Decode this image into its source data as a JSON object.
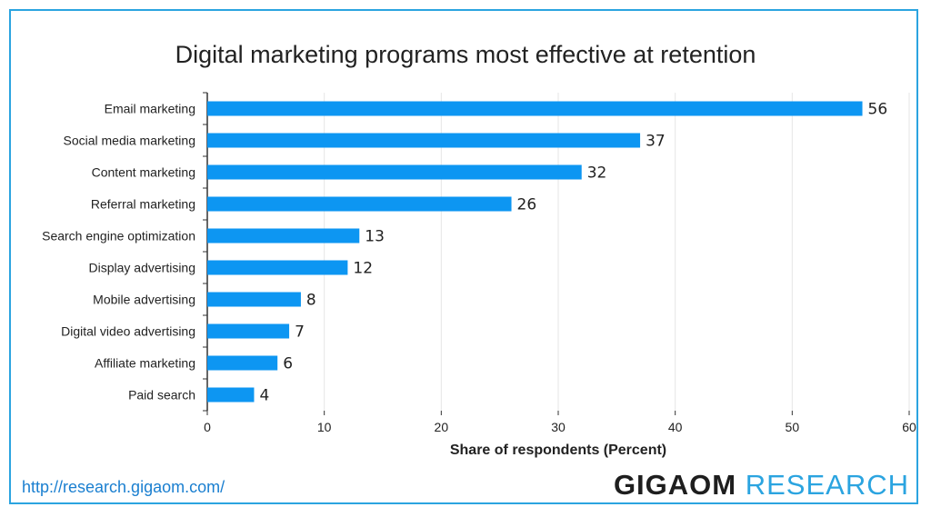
{
  "chart_data": {
    "type": "bar",
    "orientation": "horizontal",
    "title": "Digital marketing programs most effective at retention",
    "xlabel": "Share of respondents (Percent)",
    "ylabel": "",
    "xlim": [
      0,
      60
    ],
    "xticks": [
      0,
      10,
      20,
      30,
      40,
      50,
      60
    ],
    "grid": true,
    "categories": [
      "Email marketing",
      "Social media marketing",
      "Content marketing",
      "Referral marketing",
      "Search engine optimization",
      "Display advertising",
      "Mobile advertising",
      "Digital video advertising",
      "Affiliate marketing",
      "Paid search"
    ],
    "values": [
      56,
      37,
      32,
      26,
      13,
      12,
      8,
      7,
      6,
      4
    ],
    "bar_color": "#0d96f2"
  },
  "footer": {
    "url": "http://research.gigaom.com/",
    "logo_primary": "GIGAOM",
    "logo_secondary": "RESEARCH"
  },
  "colors": {
    "frame": "#2ba4e0",
    "logo_primary": "#1e1e1e",
    "logo_secondary": "#2ba4e0",
    "url": "#1a7fd0"
  }
}
